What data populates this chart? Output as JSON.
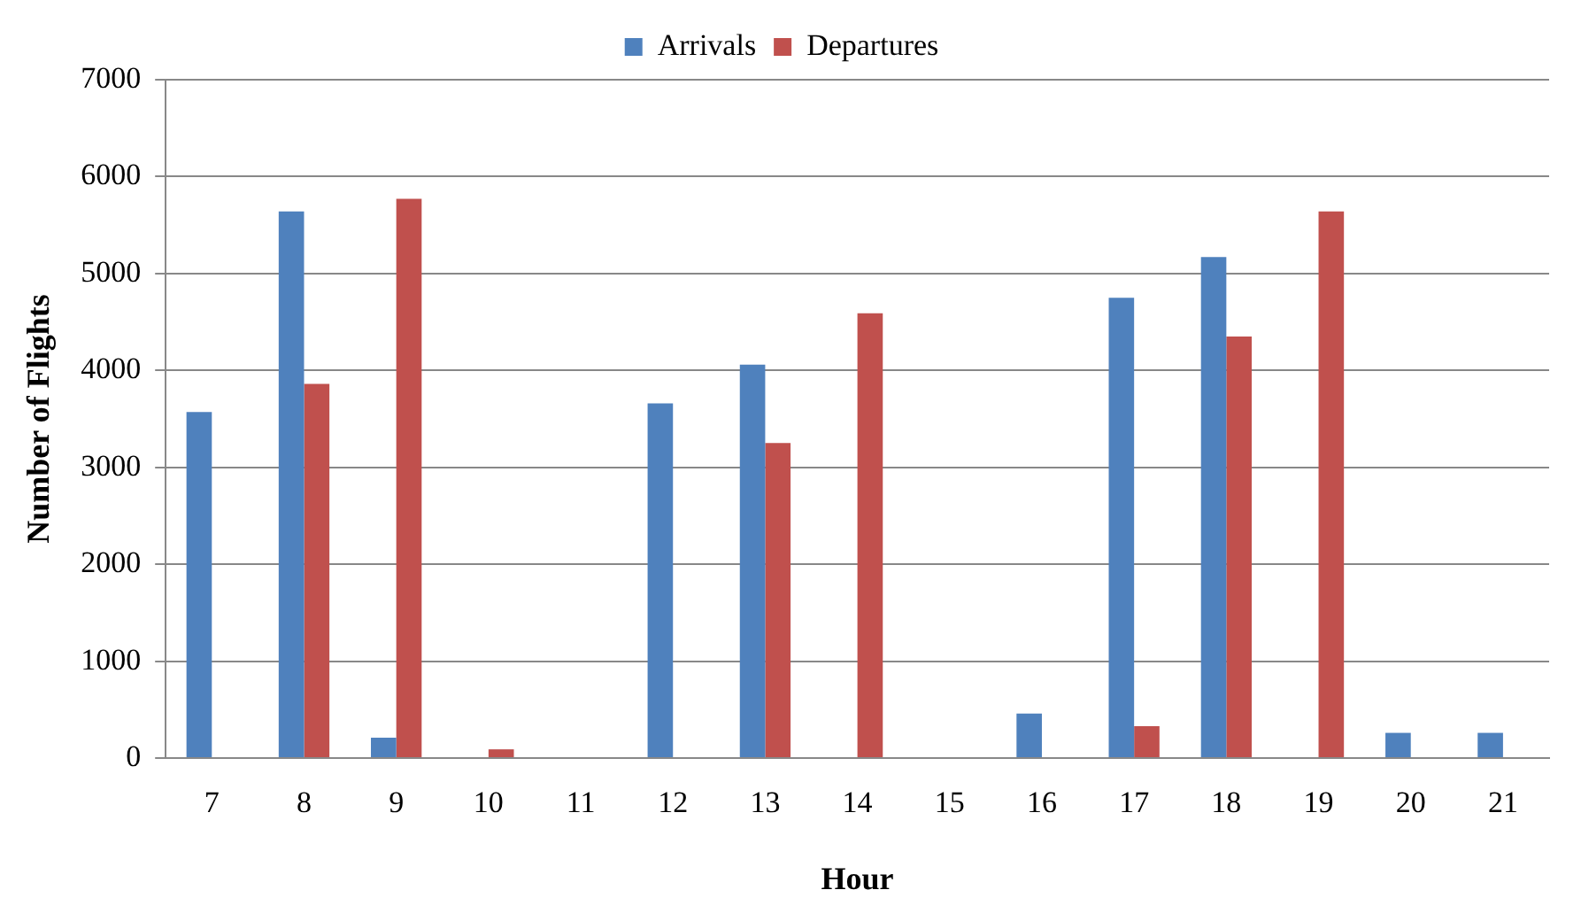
{
  "chart_data": {
    "type": "bar",
    "xlabel": "Hour",
    "ylabel": "Number of Flights",
    "categories": [
      "7",
      "8",
      "9",
      "10",
      "11",
      "12",
      "13",
      "14",
      "15",
      "16",
      "17",
      "18",
      "19",
      "20",
      "21"
    ],
    "series": [
      {
        "name": "Arrivals",
        "color": "#4f81bd",
        "values": [
          3570,
          5640,
          210,
          0,
          0,
          3660,
          4060,
          0,
          0,
          460,
          4750,
          5170,
          0,
          260,
          260
        ]
      },
      {
        "name": "Departures",
        "color": "#c0504d",
        "values": [
          0,
          3860,
          5770,
          90,
          0,
          0,
          3250,
          4590,
          0,
          0,
          330,
          4350,
          5640,
          0,
          0
        ]
      }
    ],
    "ylim": [
      0,
      7000
    ],
    "yticks": [
      0,
      1000,
      2000,
      3000,
      4000,
      5000,
      6000,
      7000
    ],
    "grid": "y",
    "legend": "top"
  }
}
